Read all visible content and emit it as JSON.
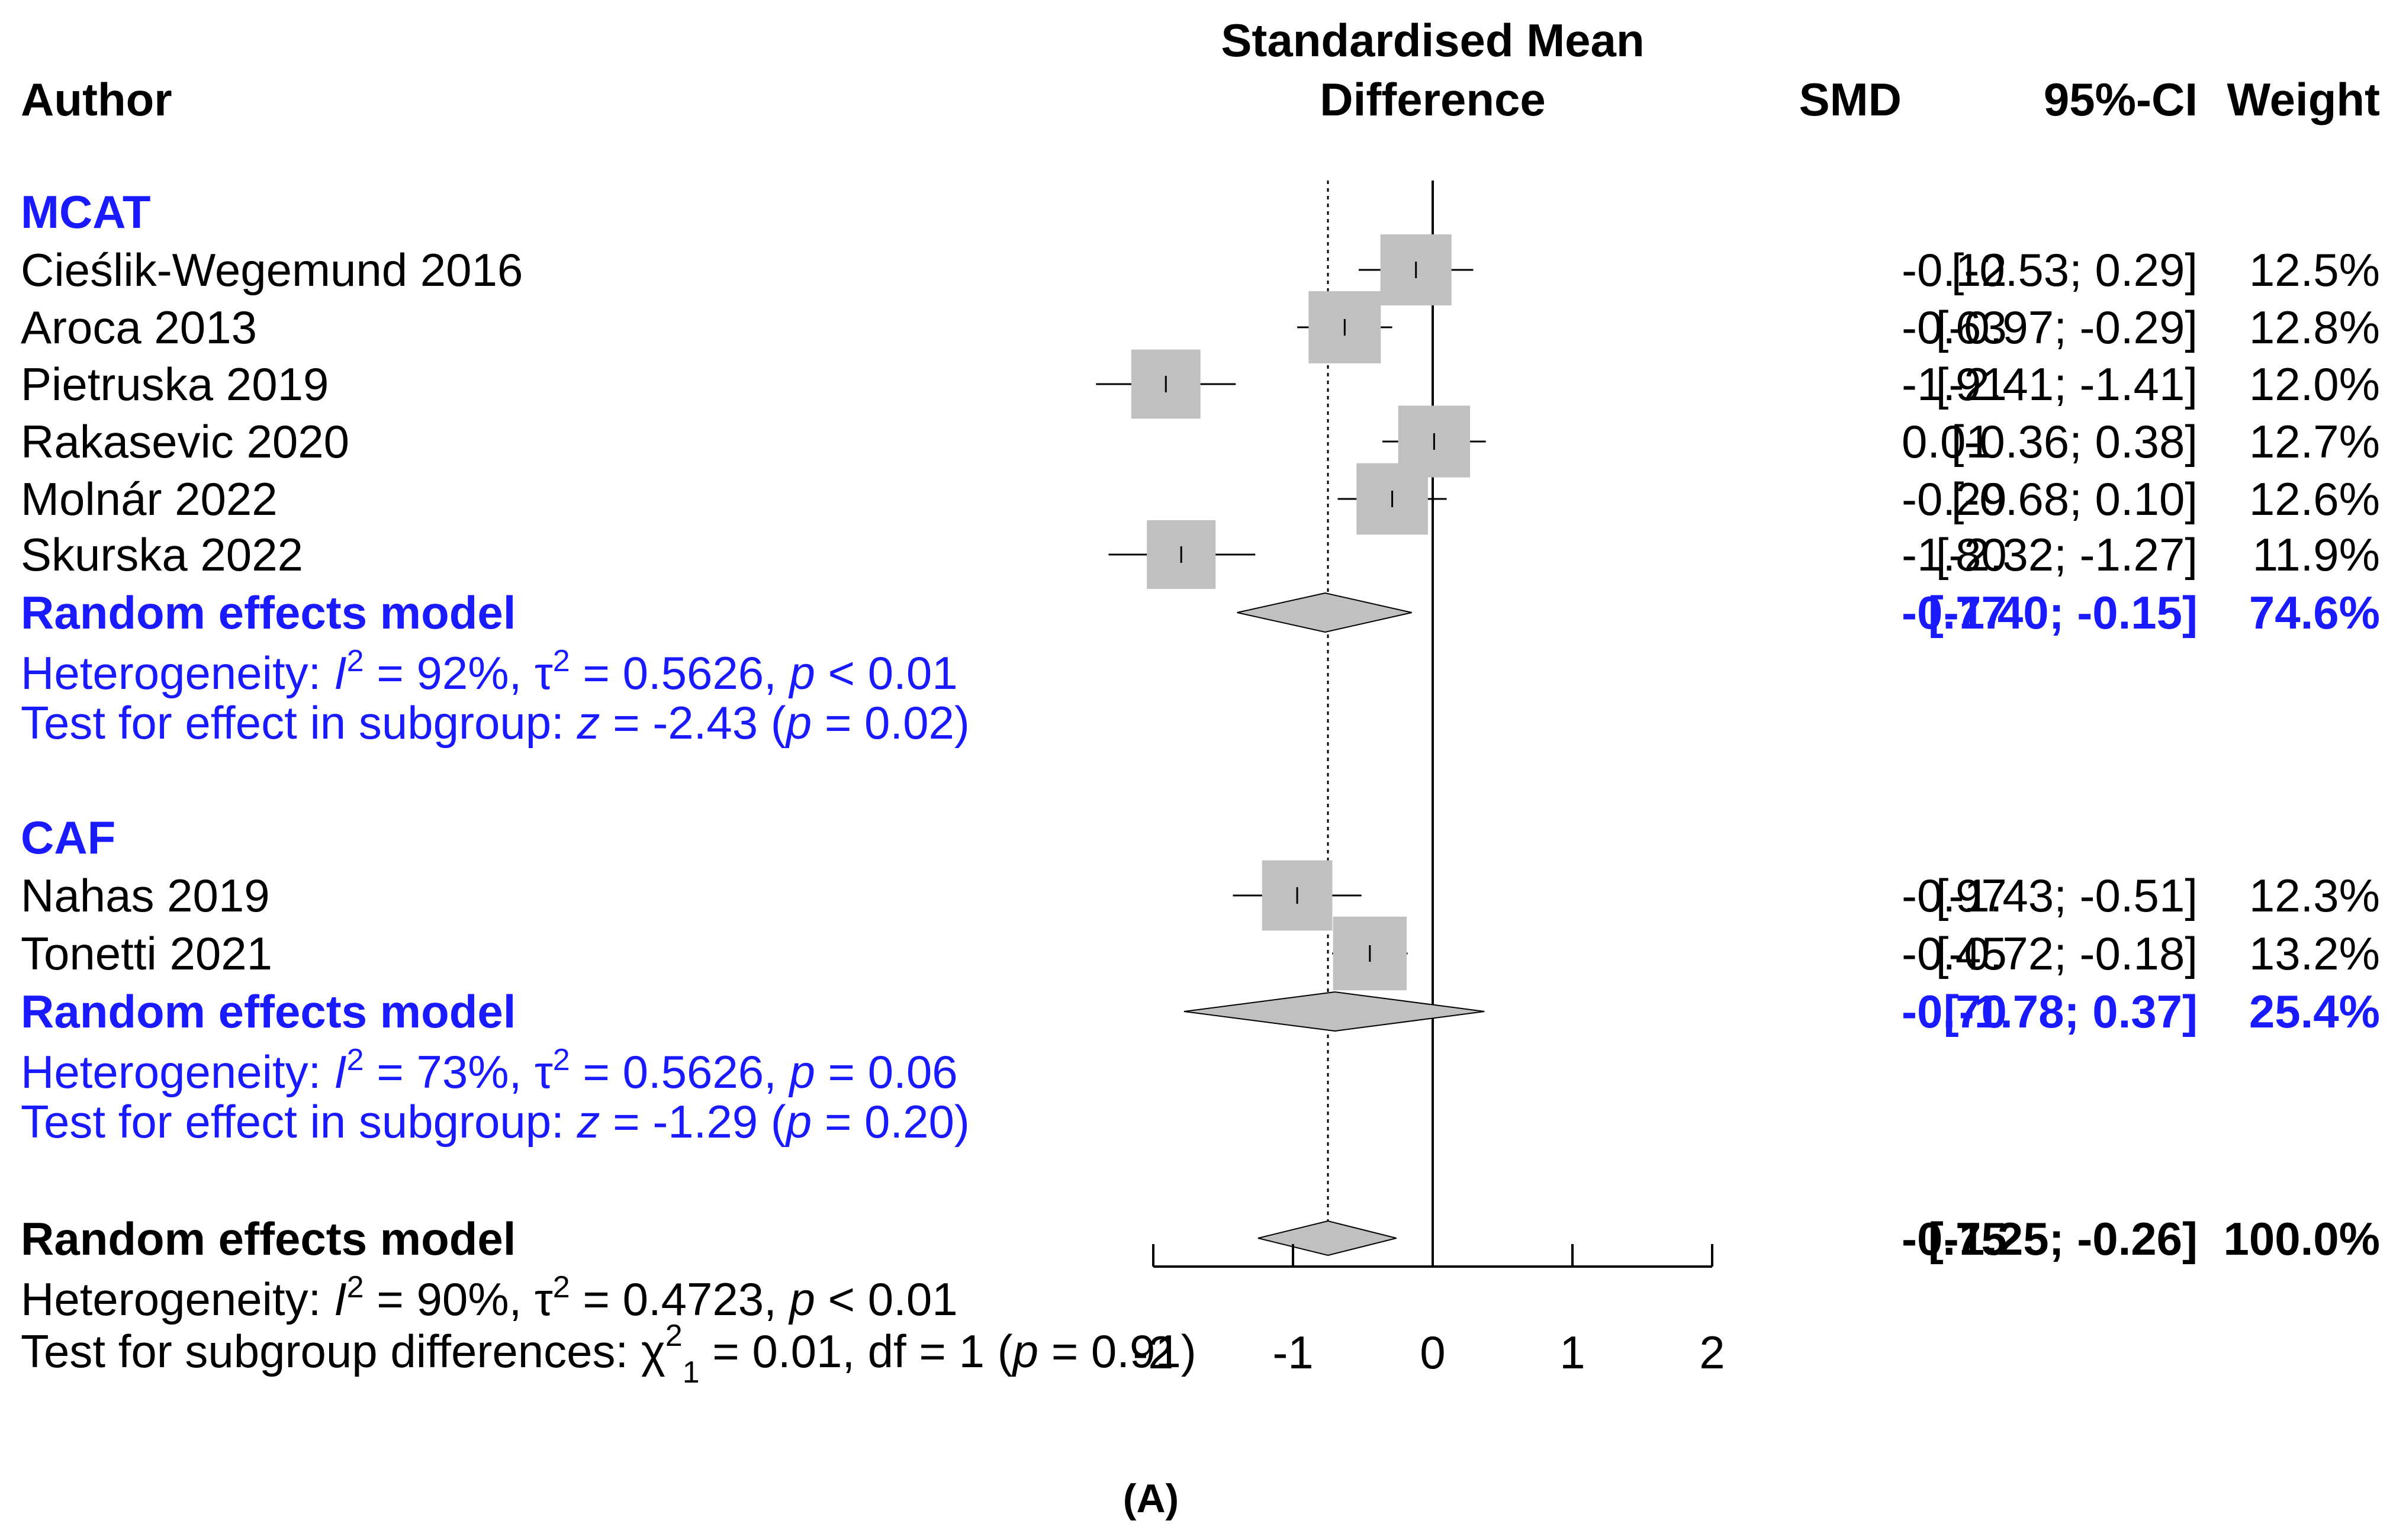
{
  "chart_data": {
    "type": "forest",
    "title": "Standardised Mean Difference",
    "title_lines": [
      "Standardised Mean",
      "Difference"
    ],
    "columns": {
      "author": "Author",
      "smd": "SMD",
      "ci": "95%-CI",
      "weight": "Weight"
    },
    "x_axis": {
      "ticks": [
        -2,
        -1,
        0,
        1,
        2
      ],
      "tick_labels": [
        "-2",
        "-1",
        "0",
        "1",
        "2"
      ],
      "range": [
        -2,
        2
      ]
    },
    "reference_line": 0,
    "overall_dotted_line": -0.75,
    "colors": {
      "subgroup": "#1a1aff",
      "square": "#c0c0c0",
      "diamond": "#c0c0c0",
      "text": "#000000"
    },
    "subgroups": [
      {
        "name": "MCAT",
        "studies": [
          {
            "author": "Cieślik-Wegemund 2016",
            "smd": -0.12,
            "lower": -0.53,
            "upper": 0.29,
            "weight_pct": 12.5,
            "smd_text": "-0.12",
            "ci_text": "[-0.53;  0.29]",
            "weight_text": "12.5%"
          },
          {
            "author": "Aroca 2013",
            "smd": -0.63,
            "lower": -0.97,
            "upper": -0.29,
            "weight_pct": 12.8,
            "smd_text": "-0.63",
            "ci_text": "[-0.97; -0.29]",
            "weight_text": "12.8%"
          },
          {
            "author": "Pietruska 2019",
            "smd": -1.91,
            "lower": -2.41,
            "upper": -1.41,
            "weight_pct": 12.0,
            "smd_text": "-1.91",
            "ci_text": "[-2.41; -1.41]",
            "weight_text": "12.0%"
          },
          {
            "author": "Rakasevic 2020",
            "smd": 0.01,
            "lower": -0.36,
            "upper": 0.38,
            "weight_pct": 12.7,
            "smd_text": "0.01",
            "ci_text": "[-0.36;  0.38]",
            "weight_text": "12.7%"
          },
          {
            "author": "Molnár 2022",
            "smd": -0.29,
            "lower": -0.68,
            "upper": 0.1,
            "weight_pct": 12.6,
            "smd_text": "-0.29",
            "ci_text": "[-0.68;  0.10]",
            "weight_text": "12.6%"
          },
          {
            "author": "Skurska 2022",
            "smd": -1.8,
            "lower": -2.32,
            "upper": -1.27,
            "weight_pct": 11.9,
            "smd_text": "-1.80",
            "ci_text": "[-2.32; -1.27]",
            "weight_text": "11.9%"
          }
        ],
        "model": {
          "label": "Random effects model",
          "smd": -0.77,
          "lower": -1.4,
          "upper": -0.15,
          "smd_text": "-0.77",
          "ci_text": "[-1.40; -0.15]",
          "weight_text": "74.6%"
        },
        "heterogeneity": {
          "prefix": "Heterogeneity: ",
          "i2": "92%",
          "tau2": "0.5626",
          "p": "< 0.01"
        },
        "test": {
          "prefix": "Test for effect in subgroup: ",
          "z": "-2.43",
          "p": "0.02"
        }
      },
      {
        "name": "CAF",
        "studies": [
          {
            "author": "Nahas 2019",
            "smd": -0.97,
            "lower": -1.43,
            "upper": -0.51,
            "weight_pct": 12.3,
            "smd_text": "-0.97",
            "ci_text": "[-1.43; -0.51]",
            "weight_text": "12.3%"
          },
          {
            "author": "Tonetti 2021",
            "smd": -0.45,
            "lower": -0.72,
            "upper": -0.18,
            "weight_pct": 13.2,
            "smd_text": "-0.45",
            "ci_text": "[-0.72; -0.18]",
            "weight_text": "13.2%"
          }
        ],
        "model": {
          "label": "Random effects model",
          "smd": -0.7,
          "lower": -1.78,
          "upper": 0.37,
          "smd_text": "-0.70",
          "ci_text": "[-1.78;  0.37]",
          "weight_text": "25.4%"
        },
        "heterogeneity": {
          "prefix": "Heterogeneity: ",
          "i2": "73%",
          "tau2": "0.5626",
          "p": "= 0.06"
        },
        "test": {
          "prefix": "Test for effect in subgroup: ",
          "z": "-1.29",
          "p": "0.20"
        }
      }
    ],
    "overall": {
      "label": "Random effects model",
      "smd": -0.75,
      "lower": -1.25,
      "upper": -0.26,
      "smd_text": "-0.75",
      "ci_text": "[-1.25; -0.26]",
      "weight_text": "100.0%",
      "heterogeneity": {
        "prefix": "Heterogeneity: ",
        "i2": "90%",
        "tau2": "0.4723",
        "p": "< 0.01"
      },
      "subgroup_test": {
        "prefix": "Test for subgroup differences: ",
        "chi2": "0.01",
        "df": "1",
        "p": "0.91"
      }
    },
    "panel_label": "(A)"
  }
}
